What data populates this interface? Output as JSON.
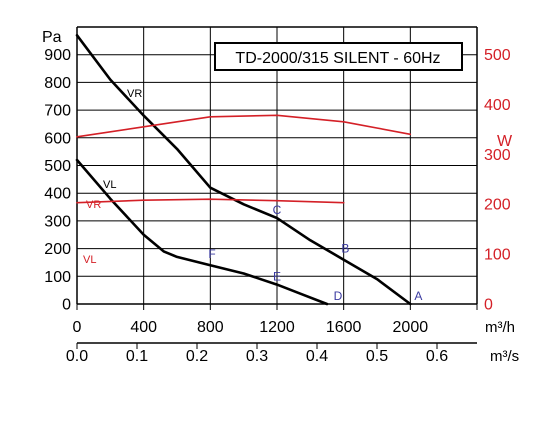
{
  "chart_data": {
    "type": "line",
    "title": "TD-2000/315 SILENT - 60Hz",
    "y_unit": "Pa",
    "y2_unit": "W",
    "x_unit": "m³/h",
    "x2_unit": "m³/s",
    "xlim": [
      0,
      2400
    ],
    "ylim": [
      0,
      1000
    ],
    "y2lim": [
      0,
      555
    ],
    "x_ticks": [
      "0",
      "400",
      "800",
      "1200",
      "1600",
      "2000"
    ],
    "x2_ticks": [
      "0.0",
      "0.1",
      "0.2",
      "0.3",
      "0.4",
      "0.5",
      "0.6"
    ],
    "y_ticks": [
      "0",
      "100",
      "200",
      "300",
      "400",
      "500",
      "600",
      "700",
      "800",
      "900"
    ],
    "y2_ticks": [
      "0",
      "100",
      "200",
      "300",
      "400",
      "500"
    ],
    "grid": true,
    "colors": {
      "pressure": "#000000",
      "power": "#d42027",
      "power_labels": "#d42027",
      "point_labels": "#3a3aa0"
    },
    "series": [
      {
        "name": "VR",
        "axis": "left",
        "x": [
          0,
          200,
          400,
          600,
          800,
          1000,
          1200,
          1400,
          1600,
          1800,
          2000
        ],
        "y": [
          970,
          810,
          680,
          560,
          420,
          360,
          310,
          230,
          160,
          90,
          0
        ]
      },
      {
        "name": "VL",
        "axis": "left",
        "x": [
          0,
          200,
          400,
          520,
          600,
          800,
          1000,
          1200,
          1350,
          1500
        ],
        "y": [
          520,
          380,
          250,
          190,
          170,
          140,
          110,
          70,
          35,
          0
        ]
      },
      {
        "name": "VR",
        "axis": "right",
        "x": [
          0,
          400,
          800,
          1200,
          1600,
          2000
        ],
        "y": [
          335,
          355,
          375,
          378,
          365,
          340
        ]
      },
      {
        "name": "VL",
        "axis": "right",
        "x": [
          0,
          400,
          800,
          1200,
          1600
        ],
        "y": [
          203,
          208,
          210,
          207,
          203
        ]
      }
    ],
    "points": [
      {
        "label": "A",
        "x": 2000,
        "y": 0
      },
      {
        "label": "B",
        "x": 1610,
        "y": 200
      },
      {
        "label": "C",
        "x": 1200,
        "y": 340
      },
      {
        "label": "D",
        "x": 1530,
        "y": 0
      },
      {
        "label": "E",
        "x": 1200,
        "y": 100
      },
      {
        "label": "F",
        "x": 810,
        "y": 180
      }
    ]
  }
}
